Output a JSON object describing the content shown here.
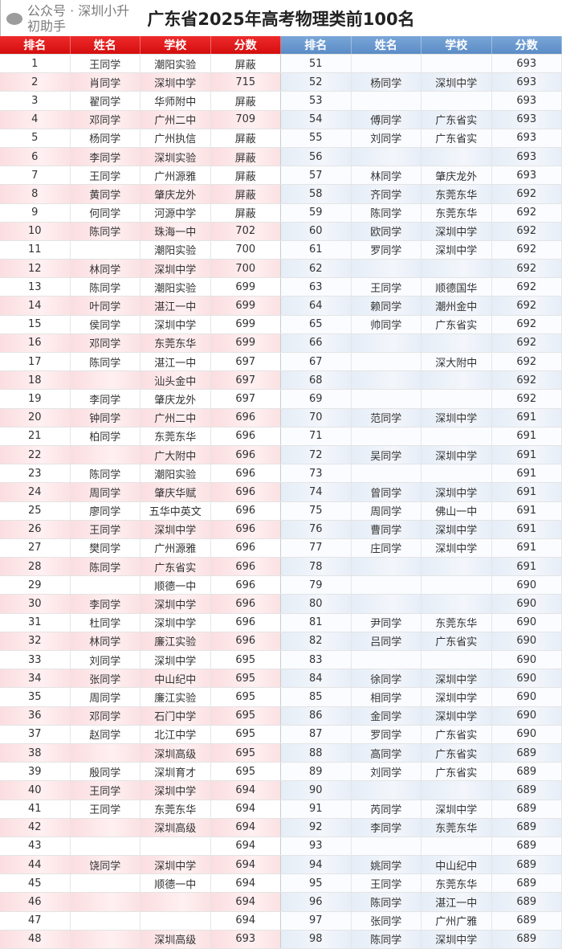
{
  "title": "广东省2025年高考物理类前100名",
  "headers": [
    "排名",
    "姓名",
    "学校",
    "分数"
  ],
  "colors": {
    "left_header": "#e01515",
    "right_header": "#6a98cf",
    "left_row_alt": "#fbe0e2",
    "right_row_alt": "#e7eef8"
  },
  "left": [
    [
      "1",
      "王同学",
      "潮阳实验",
      "屏蔽"
    ],
    [
      "2",
      "肖同学",
      "深圳中学",
      "715"
    ],
    [
      "3",
      "翟同学",
      "华师附中",
      "屏蔽"
    ],
    [
      "4",
      "邓同学",
      "广州二中",
      "709"
    ],
    [
      "5",
      "杨同学",
      "广州执信",
      "屏蔽"
    ],
    [
      "6",
      "李同学",
      "深圳实验",
      "屏蔽"
    ],
    [
      "7",
      "王同学",
      "广州源雅",
      "屏蔽"
    ],
    [
      "8",
      "黄同学",
      "肇庆龙外",
      "屏蔽"
    ],
    [
      "9",
      "何同学",
      "河源中学",
      "屏蔽"
    ],
    [
      "10",
      "陈同学",
      "珠海一中",
      "702"
    ],
    [
      "11",
      "",
      "潮阳实验",
      "700"
    ],
    [
      "12",
      "林同学",
      "深圳中学",
      "700"
    ],
    [
      "13",
      "陈同学",
      "潮阳实验",
      "699"
    ],
    [
      "14",
      "叶同学",
      "湛江一中",
      "699"
    ],
    [
      "15",
      "侯同学",
      "深圳中学",
      "699"
    ],
    [
      "16",
      "邓同学",
      "东莞东华",
      "699"
    ],
    [
      "17",
      "陈同学",
      "湛江一中",
      "697"
    ],
    [
      "18",
      "",
      "汕头金中",
      "697"
    ],
    [
      "19",
      "李同学",
      "肇庆龙外",
      "697"
    ],
    [
      "20",
      "钟同学",
      "广州二中",
      "696"
    ],
    [
      "21",
      "柏同学",
      "东莞东华",
      "696"
    ],
    [
      "22",
      "",
      "广大附中",
      "696"
    ],
    [
      "23",
      "陈同学",
      "潮阳实验",
      "696"
    ],
    [
      "24",
      "周同学",
      "肇庆华赋",
      "696"
    ],
    [
      "25",
      "廖同学",
      "五华中英文",
      "696"
    ],
    [
      "26",
      "王同学",
      "深圳中学",
      "696"
    ],
    [
      "27",
      "樊同学",
      "广州源雅",
      "696"
    ],
    [
      "28",
      "陈同学",
      "广东省实",
      "696"
    ],
    [
      "29",
      "",
      "顺德一中",
      "696"
    ],
    [
      "30",
      "李同学",
      "深圳中学",
      "696"
    ],
    [
      "31",
      "杜同学",
      "深圳中学",
      "696"
    ],
    [
      "32",
      "林同学",
      "廉江实验",
      "696"
    ],
    [
      "33",
      "刘同学",
      "深圳中学",
      "695"
    ],
    [
      "34",
      "张同学",
      "中山纪中",
      "695"
    ],
    [
      "35",
      "周同学",
      "廉江实验",
      "695"
    ],
    [
      "36",
      "邓同学",
      "石门中学",
      "695"
    ],
    [
      "37",
      "赵同学",
      "北江中学",
      "695"
    ],
    [
      "38",
      "",
      "深圳高级",
      "695"
    ],
    [
      "39",
      "殷同学",
      "深圳育才",
      "695"
    ],
    [
      "40",
      "王同学",
      "深圳中学",
      "694"
    ],
    [
      "41",
      "王同学",
      "东莞东华",
      "694"
    ],
    [
      "42",
      "",
      "深圳高级",
      "694"
    ],
    [
      "43",
      "",
      "",
      "694"
    ],
    [
      "44",
      "饶同学",
      "深圳中学",
      "694"
    ],
    [
      "45",
      "",
      "顺德一中",
      "694"
    ],
    [
      "46",
      "",
      "",
      "694"
    ],
    [
      "47",
      "",
      "",
      "694"
    ],
    [
      "48",
      "",
      "深圳高级",
      "693"
    ]
  ],
  "right": [
    [
      "51",
      "",
      "",
      "693"
    ],
    [
      "52",
      "杨同学",
      "深圳中学",
      "693"
    ],
    [
      "53",
      "",
      "",
      "693"
    ],
    [
      "54",
      "傅同学",
      "广东省实",
      "693"
    ],
    [
      "55",
      "刘同学",
      "广东省实",
      "693"
    ],
    [
      "56",
      "",
      "",
      "693"
    ],
    [
      "57",
      "林同学",
      "肇庆龙外",
      "693"
    ],
    [
      "58",
      "齐同学",
      "东莞东华",
      "692"
    ],
    [
      "59",
      "陈同学",
      "东莞东华",
      "692"
    ],
    [
      "60",
      "欧同学",
      "深圳中学",
      "692"
    ],
    [
      "61",
      "罗同学",
      "深圳中学",
      "692"
    ],
    [
      "62",
      "",
      "",
      "692"
    ],
    [
      "63",
      "王同学",
      "顺德国华",
      "692"
    ],
    [
      "64",
      "赖同学",
      "潮州金中",
      "692"
    ],
    [
      "65",
      "帅同学",
      "广东省实",
      "692"
    ],
    [
      "66",
      "",
      "",
      "692"
    ],
    [
      "67",
      "",
      "深大附中",
      "692"
    ],
    [
      "68",
      "",
      "",
      "692"
    ],
    [
      "69",
      "",
      "",
      "692"
    ],
    [
      "70",
      "范同学",
      "深圳中学",
      "691"
    ],
    [
      "71",
      "",
      "",
      "691"
    ],
    [
      "72",
      "吴同学",
      "深圳中学",
      "691"
    ],
    [
      "73",
      "",
      "",
      "691"
    ],
    [
      "74",
      "曾同学",
      "深圳中学",
      "691"
    ],
    [
      "75",
      "周同学",
      "佛山一中",
      "691"
    ],
    [
      "76",
      "曹同学",
      "深圳中学",
      "691"
    ],
    [
      "77",
      "庄同学",
      "深圳中学",
      "691"
    ],
    [
      "78",
      "",
      "",
      "691"
    ],
    [
      "79",
      "",
      "",
      "690"
    ],
    [
      "80",
      "",
      "",
      "690"
    ],
    [
      "81",
      "尹同学",
      "东莞东华",
      "690"
    ],
    [
      "82",
      "吕同学",
      "广东省实",
      "690"
    ],
    [
      "83",
      "",
      "",
      "690"
    ],
    [
      "84",
      "徐同学",
      "深圳中学",
      "690"
    ],
    [
      "85",
      "相同学",
      "深圳中学",
      "690"
    ],
    [
      "86",
      "金同学",
      "深圳中学",
      "690"
    ],
    [
      "87",
      "罗同学",
      "广东省实",
      "690"
    ],
    [
      "88",
      "高同学",
      "广东省实",
      "689"
    ],
    [
      "89",
      "刘同学",
      "广东省实",
      "689"
    ],
    [
      "90",
      "",
      "",
      "689"
    ],
    [
      "91",
      "芮同学",
      "深圳中学",
      "689"
    ],
    [
      "92",
      "李同学",
      "东莞东华",
      "689"
    ],
    [
      "93",
      "",
      "",
      "689"
    ],
    [
      "94",
      "姚同学",
      "中山纪中",
      "689"
    ],
    [
      "95",
      "王同学",
      "东莞东华",
      "689"
    ],
    [
      "96",
      "陈同学",
      "湛江一中",
      "689"
    ],
    [
      "97",
      "张同学",
      "广州广雅",
      "689"
    ],
    [
      "98",
      "陈同学",
      "深圳中学",
      "689"
    ]
  ],
  "watermark": "公众号 · 深圳小升初助手"
}
